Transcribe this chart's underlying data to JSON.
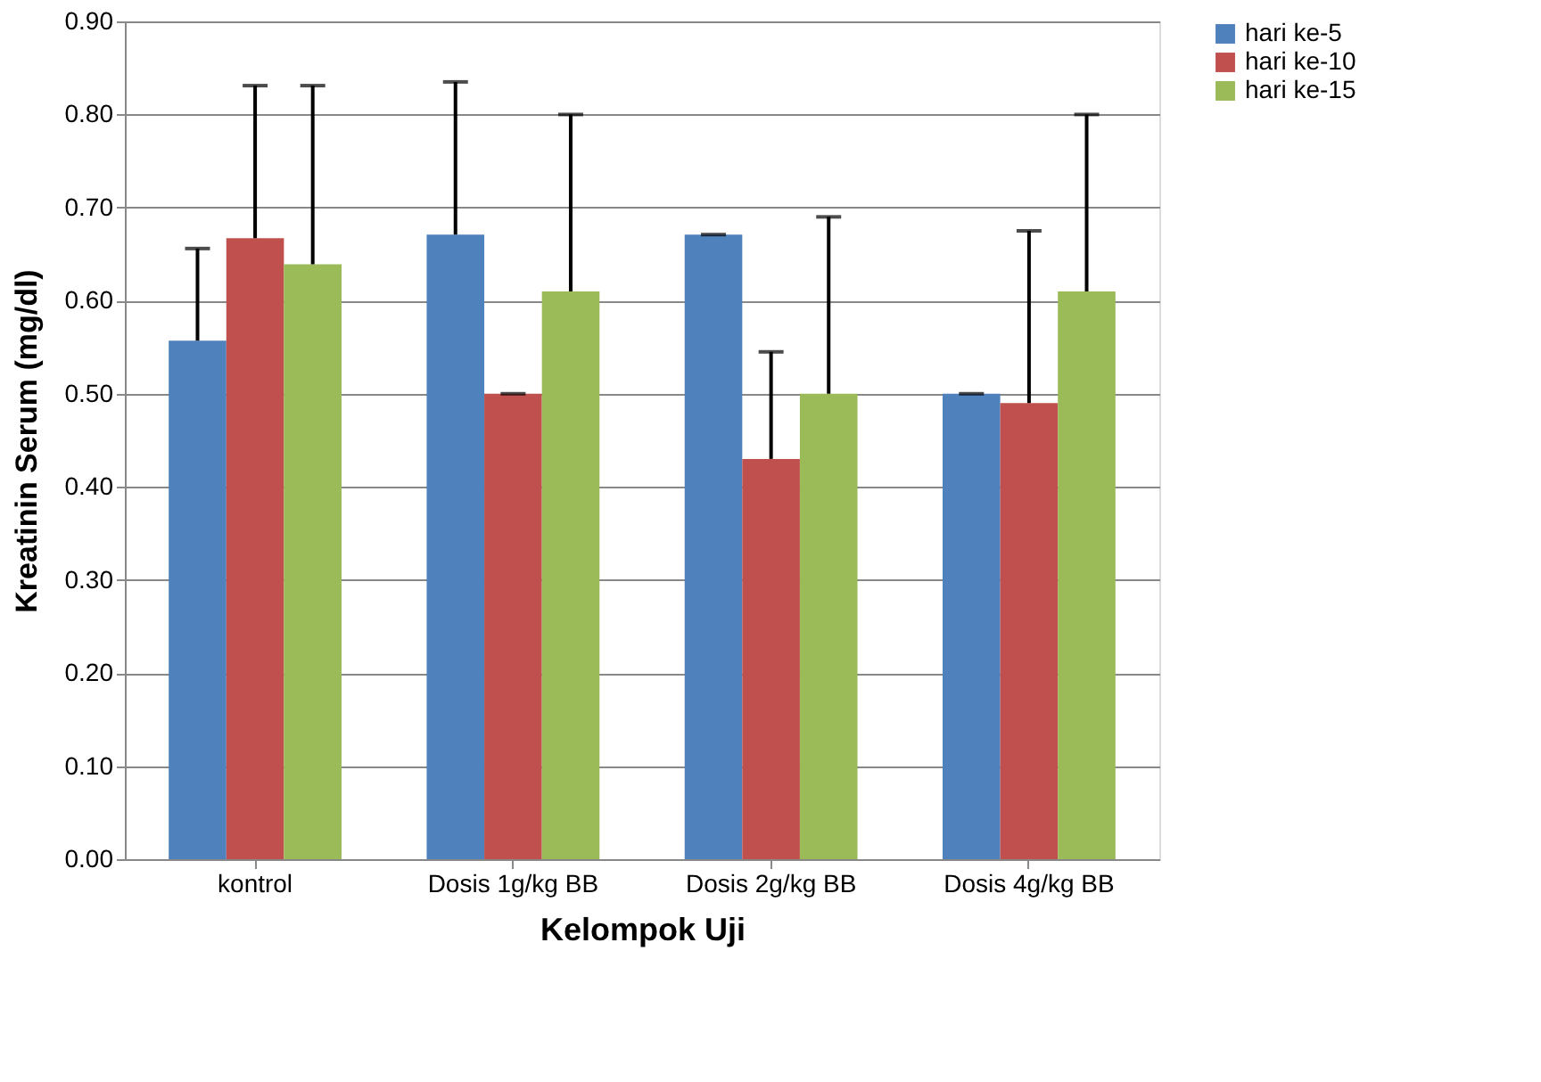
{
  "chart_data": {
    "type": "bar",
    "xlabel": "Kelompok Uji",
    "ylabel": "Kreatinin Serum (mg/dl)",
    "categories": [
      "kontrol",
      "Dosis 1g/kg BB",
      "Dosis 2g/kg BB",
      "Dosis 4g/kg BB"
    ],
    "series": [
      {
        "name": "hari ke-5",
        "color": "#4f81bd",
        "values": [
          0.557,
          0.671,
          0.671,
          0.5
        ],
        "errors": [
          [
            0.557,
            0.656
          ],
          [
            0.671,
            0.835
          ],
          [
            0.671,
            0.671
          ],
          [
            0.5,
            0.5
          ]
        ]
      },
      {
        "name": "hari ke-10",
        "color": "#c0504d",
        "values": [
          0.667,
          0.5,
          0.43,
          0.49
        ],
        "errors": [
          [
            0.667,
            0.831
          ],
          [
            0.5,
            0.5
          ],
          [
            0.43,
            0.545
          ],
          [
            0.49,
            0.675
          ]
        ]
      },
      {
        "name": "hari ke-15",
        "color": "#9bbb59",
        "values": [
          0.639,
          0.61,
          0.5,
          0.61
        ],
        "errors": [
          [
            0.639,
            0.831
          ],
          [
            0.61,
            0.8
          ],
          [
            0.5,
            0.69
          ],
          [
            0.61,
            0.8
          ]
        ]
      }
    ],
    "ylim": [
      0,
      0.9
    ],
    "yticks": [
      {
        "value": 0,
        "label": "0.00"
      },
      {
        "value": 0.1,
        "label": "0.10"
      },
      {
        "value": 0.2,
        "label": "0.20"
      },
      {
        "value": 0.3,
        "label": "0.30"
      },
      {
        "value": 0.4,
        "label": "0.40"
      },
      {
        "value": 0.5,
        "label": "0.50"
      },
      {
        "value": 0.6,
        "label": "0.60"
      },
      {
        "value": 0.7,
        "label": "0.70"
      },
      {
        "value": 0.8,
        "label": "0.80"
      },
      {
        "value": 0.9,
        "label": "0.90"
      }
    ],
    "grid": "y",
    "legend": "right"
  }
}
